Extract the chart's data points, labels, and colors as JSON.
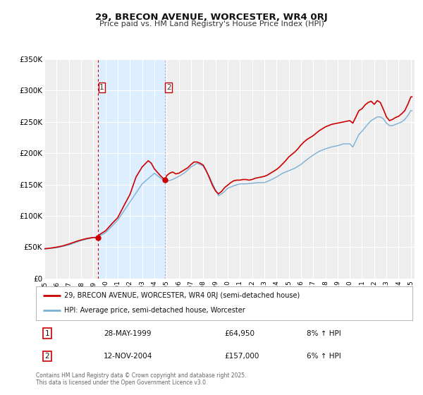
{
  "title": "29, BRECON AVENUE, WORCESTER, WR4 0RJ",
  "subtitle": "Price paid vs. HM Land Registry's House Price Index (HPI)",
  "ylim": [
    0,
    350000
  ],
  "yticks": [
    0,
    50000,
    100000,
    150000,
    200000,
    250000,
    300000,
    350000
  ],
  "ytick_labels": [
    "£0",
    "£50K",
    "£100K",
    "£150K",
    "£200K",
    "£250K",
    "£300K",
    "£350K"
  ],
  "plot_bg_color": "#eeeeee",
  "grid_color": "#ffffff",
  "shade_color": "#ddeeff",
  "transaction1_date": 1999.41,
  "transaction2_date": 2004.87,
  "transaction1_price": 64950,
  "transaction2_price": 157000,
  "marker_color": "#cc0000",
  "hpi_color": "#7bafd4",
  "price_color": "#cc0000",
  "legend_label1": "29, BRECON AVENUE, WORCESTER, WR4 0RJ (semi-detached house)",
  "legend_label2": "HPI: Average price, semi-detached house, Worcester",
  "note1_num": "1",
  "note1_date": "28-MAY-1999",
  "note1_price": "£64,950",
  "note1_hpi": "8% ↑ HPI",
  "note2_num": "2",
  "note2_date": "12-NOV-2004",
  "note2_price": "£157,000",
  "note2_hpi": "6% ↑ HPI",
  "footnote": "Contains HM Land Registry data © Crown copyright and database right 2025.\nThis data is licensed under the Open Government Licence v3.0."
}
